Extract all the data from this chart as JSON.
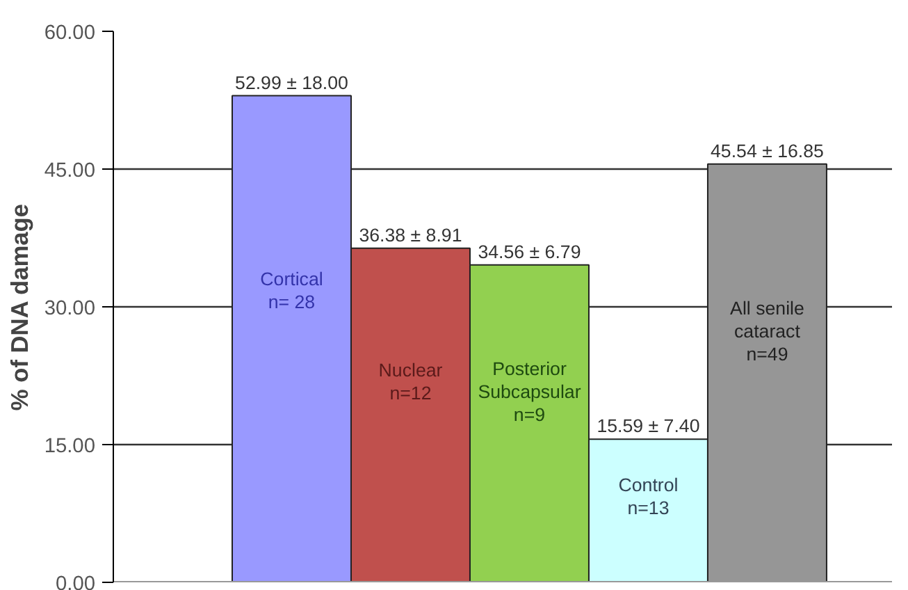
{
  "chart_data": {
    "type": "bar",
    "ylabel": "% of DNA damage",
    "categories": [
      "Cortical\nn= 28",
      "Nuclear\nn=12",
      "Posterior\nSubcapsular\nn=9",
      "Control\nn=13",
      "All senile\ncataract\nn=49"
    ],
    "values": [
      52.99,
      36.38,
      34.56,
      15.59,
      45.54
    ],
    "colors": [
      "#9999ff",
      "#c0504d",
      "#92d050",
      "#ccffff",
      "#969696"
    ],
    "value_labels": [
      "52.99 ± 18.00",
      "36.38 ± 8.91",
      "34.56 ± 6.79",
      "15.59 ± 7.40",
      "45.54 ± 16.85"
    ],
    "ylim": [
      0,
      60
    ],
    "yticks": [
      {
        "value": 0,
        "label": "0.00"
      },
      {
        "value": 15,
        "label": "15.00"
      },
      {
        "value": 30,
        "label": "30.00"
      },
      {
        "value": 45,
        "label": "45.00"
      },
      {
        "value": 60,
        "label": "60.00"
      }
    ],
    "grid": "y"
  }
}
